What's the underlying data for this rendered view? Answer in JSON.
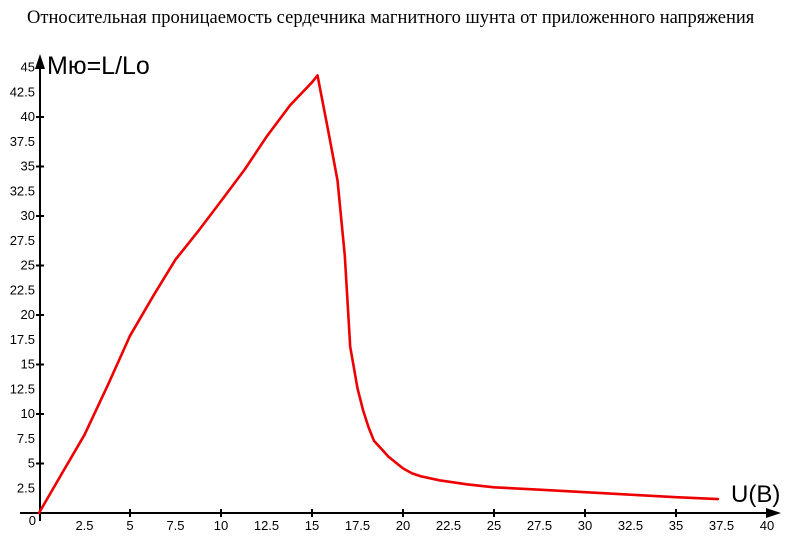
{
  "title": "Относительная проницаемость сердечника магнитного шунта от приложенного напряжения",
  "colors": {
    "background": "#ffffff",
    "axis": "#000000",
    "text": "#000000",
    "curve": "#ee0000"
  },
  "chart_data": {
    "type": "line",
    "title": "Относительная проницаемость сердечника магнитного шунта от приложенного напряжения",
    "xlabel": "U(В)",
    "ylabel": "Мю=L/Lo",
    "xlim": [
      0,
      41.5
    ],
    "ylim": [
      0,
      46.5
    ],
    "grid": false,
    "legend_position": "none",
    "origin_label": "0",
    "x_tick_labels": [
      "2.5",
      "5",
      "7.5",
      "10",
      "12.5",
      "15",
      "17.5",
      "20",
      "22.5",
      "25",
      "27.5",
      "30",
      "32.5",
      "35",
      "37.5",
      "40"
    ],
    "x_tick_label_values": [
      2.5,
      5,
      7.5,
      10,
      12.5,
      15,
      17.5,
      20,
      22.5,
      25,
      27.5,
      30,
      32.5,
      35,
      37.5,
      40
    ],
    "y_tick_labels": [
      "2.5",
      "5",
      "7.5",
      "10",
      "12.5",
      "15",
      "17.5",
      "20",
      "22.5",
      "25",
      "27.5",
      "30",
      "32.5",
      "35",
      "37.5",
      "40",
      "42.5",
      "45"
    ],
    "y_tick_label_values": [
      2.5,
      5,
      7.5,
      10,
      12.5,
      15,
      17.5,
      20,
      22.5,
      25,
      27.5,
      30,
      32.5,
      35,
      37.5,
      40,
      42.5,
      45
    ],
    "x_tick_marks": [
      5,
      10,
      15,
      20,
      25,
      30,
      35,
      40
    ],
    "y_tick_marks": [
      5,
      10,
      15,
      20,
      25,
      30,
      35,
      40,
      45
    ],
    "series": [
      {
        "name": "relative-permeability",
        "color": "#ee0000",
        "points": [
          [
            0,
            0
          ],
          [
            1.2,
            3.8
          ],
          [
            2.5,
            7.9
          ],
          [
            3.8,
            13.0
          ],
          [
            5.0,
            17.9
          ],
          [
            6.3,
            22.0
          ],
          [
            7.5,
            25.6
          ],
          [
            8.8,
            28.6
          ],
          [
            10.0,
            31.5
          ],
          [
            11.3,
            34.7
          ],
          [
            12.5,
            38.0
          ],
          [
            13.8,
            41.2
          ],
          [
            15.0,
            43.5
          ],
          [
            15.3,
            44.2
          ],
          [
            15.9,
            38.5
          ],
          [
            16.4,
            33.6
          ],
          [
            16.8,
            26.0
          ],
          [
            17.1,
            16.8
          ],
          [
            17.5,
            12.6
          ],
          [
            17.8,
            10.4
          ],
          [
            18.1,
            8.7
          ],
          [
            18.4,
            7.3
          ],
          [
            19.2,
            5.7
          ],
          [
            20.0,
            4.5
          ],
          [
            20.5,
            4.0
          ],
          [
            21.0,
            3.7
          ],
          [
            22.0,
            3.3
          ],
          [
            23.5,
            2.9
          ],
          [
            25.0,
            2.6
          ],
          [
            27.5,
            2.35
          ],
          [
            30.0,
            2.1
          ],
          [
            32.5,
            1.85
          ],
          [
            35.0,
            1.6
          ],
          [
            37.3,
            1.4
          ]
        ]
      }
    ]
  }
}
